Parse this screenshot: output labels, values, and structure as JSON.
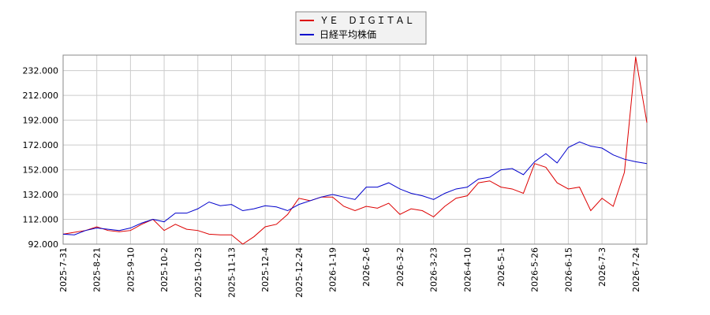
{
  "chart_data": {
    "type": "line",
    "categories": [
      "2025-7-31",
      null,
      null,
      "2025-8-21",
      null,
      null,
      "2025-9-10",
      null,
      null,
      "2025-10-2",
      null,
      null,
      "2025-10-23",
      null,
      null,
      "2025-11-13",
      null,
      null,
      "2025-12-4",
      null,
      null,
      "2025-12-24",
      null,
      null,
      "2026-1-19",
      null,
      null,
      "2026-2-6",
      null,
      null,
      "2026-3-2",
      null,
      null,
      "2026-3-23",
      null,
      null,
      "2026-4-10",
      null,
      null,
      "2026-5-1",
      null,
      null,
      "2026-5-26",
      null,
      null,
      "2026-6-15",
      null,
      null,
      "2026-7-3",
      null,
      null,
      "2026-7-24",
      null
    ],
    "series": [
      {
        "name": "ＹＥ　ＤＩＧＩＴＡＬ",
        "color": "#dd0000",
        "values": [
          100,
          101.5,
          103,
          106,
          103,
          102,
          103,
          108,
          112,
          103,
          108,
          104,
          103,
          100,
          99.5,
          99.5,
          92,
          98,
          106,
          108,
          116,
          129,
          127,
          130,
          130,
          122.5,
          119,
          122.5,
          121,
          125,
          116,
          120.5,
          119,
          114,
          122.5,
          129,
          131,
          141.5,
          143,
          138,
          136.5,
          133,
          157,
          154,
          141.5,
          136.5,
          138,
          119,
          129,
          122.5,
          150,
          243,
          190
        ]
      },
      {
        "name": "日経平均株価",
        "color": "#0000cc",
        "values": [
          100,
          99.5,
          103,
          105,
          104,
          103,
          105,
          109,
          112,
          110,
          117,
          117,
          120.5,
          126,
          123,
          124,
          119,
          120.5,
          123,
          122,
          119,
          124,
          127,
          130,
          132,
          130,
          128,
          138,
          138,
          141.5,
          136.5,
          133,
          131,
          128,
          133,
          136.5,
          138,
          144.5,
          146,
          152,
          153,
          148,
          158.5,
          165,
          157.5,
          170,
          174.5,
          171,
          169.5,
          164,
          160.5,
          158.5,
          157
        ]
      }
    ],
    "ylim": [
      92,
      244.5
    ],
    "yticks": [
      {
        "value": 92,
        "label": "92.000"
      },
      {
        "value": 112,
        "label": "112.000"
      },
      {
        "value": 132,
        "label": "132.000"
      },
      {
        "value": 152,
        "label": "152.000"
      },
      {
        "value": 172,
        "label": "172.000"
      },
      {
        "value": 192,
        "label": "192.000"
      },
      {
        "value": 212,
        "label": "212.000"
      },
      {
        "value": 232,
        "label": "232.000"
      }
    ],
    "grid": true
  }
}
